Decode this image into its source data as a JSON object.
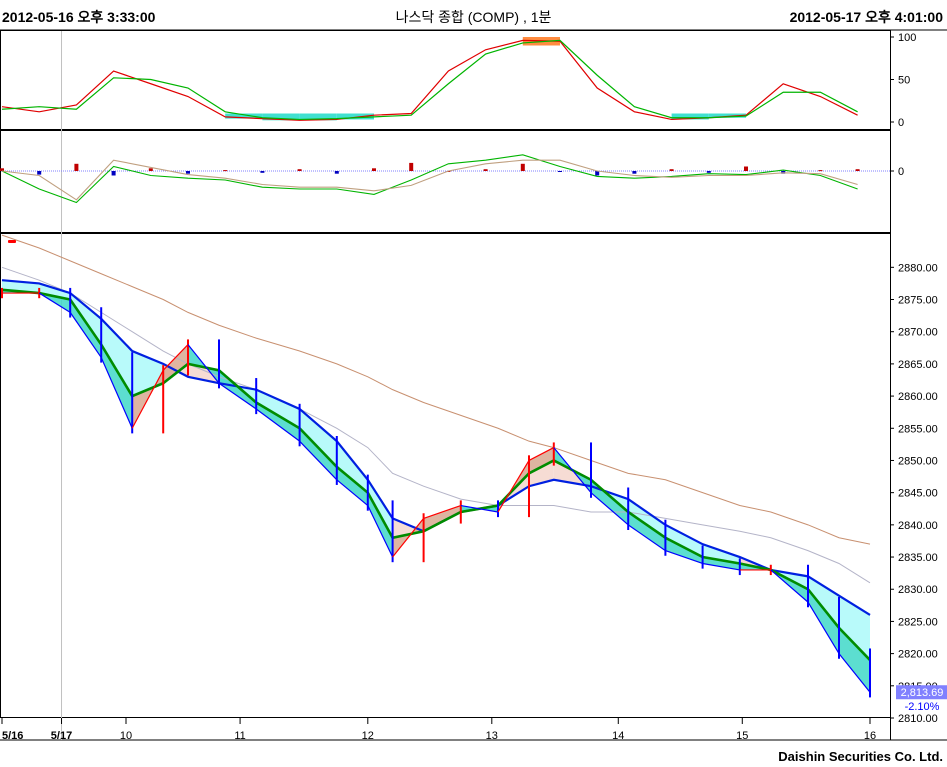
{
  "header": {
    "start_time": "2012-05-16 오후 3:33:00",
    "title": "나스닥 종합 (COMP) , 1분",
    "end_time": "2012-05-17 오후 4:01:00"
  },
  "footer": "Daishin Securities Co. Ltd.",
  "colors": {
    "up": "#ff0000",
    "down": "#0000ff",
    "ma_short": "#008c00",
    "ma_mid": "#0020e0",
    "ma_long": "#c89070",
    "ma_longest": "#b4b4c8",
    "cloud_bear": "#b8fafa",
    "cloud_bull": "#f6dcd4",
    "stoch_k": "#e00000",
    "stoch_d": "#00b400",
    "stoch_low_fill": "#40e0d0",
    "stoch_high_fill": "#ff8c40",
    "macd_pos": "#c00000",
    "macd_neg": "#0000c0"
  },
  "chart_data": [
    {
      "type": "line",
      "panel": "stochastic",
      "ylim": [
        0,
        100
      ],
      "y_ticks": [
        "100",
        "50",
        "0"
      ],
      "x": [
        0.0,
        0.3,
        0.6,
        0.9,
        1.2,
        1.5,
        1.8,
        2.1,
        2.4,
        2.7,
        3.0,
        3.3,
        3.6,
        3.9,
        4.2,
        4.5,
        4.8,
        5.1,
        5.4,
        5.7,
        6.0,
        6.3,
        6.6,
        6.9
      ],
      "series": [
        {
          "values": [
            18,
            12,
            20,
            60,
            45,
            30,
            6,
            4,
            2,
            3,
            8,
            10,
            60,
            85,
            96,
            95,
            40,
            12,
            3,
            5,
            8,
            45,
            30,
            8
          ]
        },
        {
          "values": [
            15,
            18,
            15,
            52,
            50,
            40,
            12,
            5,
            3,
            4,
            6,
            8,
            45,
            80,
            93,
            96,
            55,
            18,
            5,
            5,
            7,
            35,
            35,
            12
          ]
        }
      ]
    },
    {
      "type": "bar",
      "panel": "macd",
      "y_ticks": [
        "0"
      ],
      "x": [
        0.0,
        0.3,
        0.6,
        0.9,
        1.2,
        1.5,
        1.8,
        2.1,
        2.4,
        2.7,
        3.0,
        3.3,
        3.6,
        3.9,
        4.2,
        4.5,
        4.8,
        5.1,
        5.4,
        5.7,
        6.0,
        6.3,
        6.6,
        6.9
      ],
      "histogram": [
        0.3,
        -0.4,
        0.8,
        -0.5,
        0.3,
        -0.3,
        0.1,
        -0.2,
        0.2,
        -0.3,
        0.3,
        0.9,
        0.0,
        0.2,
        0.8,
        -0.1,
        -0.5,
        -0.3,
        0.2,
        -0.2,
        0.5,
        -0.3,
        0.1,
        0.2
      ],
      "series": [
        {
          "values": [
            0.0,
            -2.0,
            -3.5,
            0.5,
            -0.5,
            -0.8,
            -1.0,
            -1.8,
            -2.0,
            -2.0,
            -2.6,
            -1.0,
            0.8,
            1.2,
            1.8,
            0.5,
            -0.6,
            -0.8,
            -0.6,
            -0.3,
            -0.4,
            0.1,
            -0.5,
            -2.0
          ]
        },
        {
          "values": [
            0.0,
            -0.5,
            -3.2,
            1.2,
            0.4,
            -0.4,
            -0.8,
            -1.5,
            -1.8,
            -1.8,
            -2.2,
            -1.6,
            0.0,
            0.8,
            1.2,
            1.2,
            0.0,
            -0.5,
            -0.7,
            -0.5,
            -0.5,
            -0.2,
            -0.3,
            -1.5
          ]
        }
      ]
    },
    {
      "type": "line",
      "panel": "price",
      "ylim": [
        2810,
        2883
      ],
      "y_ticks": [
        "2880.00",
        "2875.00",
        "2870.00",
        "2865.00",
        "2860.00",
        "2855.00",
        "2850.00",
        "2845.00",
        "2840.00",
        "2835.00",
        "2830.00",
        "2825.00",
        "2820.00",
        "2815.00",
        "2810.00"
      ],
      "x_ticks": [
        {
          "label": "5/16",
          "x": 0.0
        },
        {
          "label": "5/17",
          "x": 0.48
        },
        {
          "label": "10",
          "x": 1.0
        },
        {
          "label": "11",
          "x": 1.92
        },
        {
          "label": "12",
          "x": 2.95
        },
        {
          "label": "13",
          "x": 3.95
        },
        {
          "label": "14",
          "x": 4.97
        },
        {
          "label": "15",
          "x": 5.97
        },
        {
          "label": "16",
          "x": 7.0
        }
      ],
      "x": [
        0.0,
        0.3,
        0.55,
        0.8,
        1.05,
        1.3,
        1.5,
        1.75,
        2.05,
        2.4,
        2.7,
        2.95,
        3.15,
        3.4,
        3.7,
        4.0,
        4.25,
        4.45,
        4.75,
        5.05,
        5.35,
        5.65,
        5.95,
        6.2,
        6.5,
        6.75,
        7.0
      ],
      "series": [
        {
          "values": [
            2876,
            2876,
            2873,
            2866,
            2855,
            2864,
            2868,
            2862,
            2858,
            2853,
            2847,
            2843,
            2835,
            2841,
            2843,
            2842,
            2850,
            2852,
            2845,
            2840,
            2836,
            2834,
            2833,
            2833,
            2828,
            2820,
            2814
          ]
        },
        {
          "values": [
            2876.5,
            2876,
            2875,
            2868,
            2860,
            2862,
            2865,
            2864,
            2859,
            2855,
            2849,
            2845,
            2838,
            2839,
            2842,
            2843,
            2848,
            2850,
            2847,
            2842,
            2838,
            2835,
            2834,
            2833,
            2830,
            2824,
            2819
          ]
        },
        {
          "values": [
            2878,
            2877.5,
            2876,
            2872,
            2867,
            2865,
            2863,
            2862,
            2861,
            2858,
            2853,
            2847,
            2841,
            2839,
            2842,
            2843,
            2846,
            2847,
            2846,
            2844,
            2840,
            2837,
            2835,
            2833,
            2832,
            2829,
            2826
          ]
        },
        {
          "values": [
            2885,
            2883,
            2881,
            2879,
            2877,
            2875,
            2873,
            2871,
            2869,
            2867,
            2865,
            2863,
            2861,
            2859,
            2857,
            2855,
            2853,
            2852,
            2850,
            2848,
            2847,
            2845,
            2843,
            2842,
            2840,
            2838,
            2837
          ]
        },
        {
          "values": [
            2880,
            2878,
            2876,
            2873,
            2870,
            2867,
            2865,
            2863,
            2861,
            2858,
            2855,
            2852,
            2848,
            2846,
            2844,
            2843,
            2843,
            2843,
            2842,
            2842,
            2841,
            2840,
            2839,
            2838,
            2836,
            2834,
            2831
          ]
        }
      ],
      "last_price_label": "2,813.69",
      "change_label": "-2.10%"
    }
  ]
}
